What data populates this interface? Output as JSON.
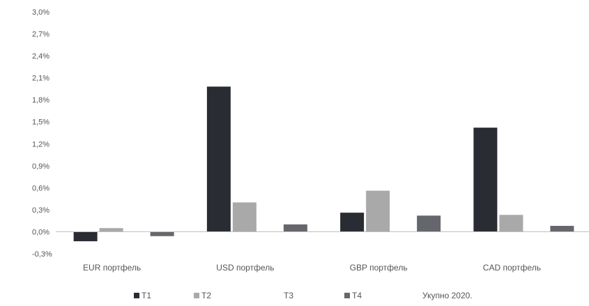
{
  "colors": {
    "T1": "#2a2c33",
    "T2": "#a9a9a9",
    "T3": "#ffffff",
    "T4": "#66676d",
    "axis": "#bfbfbf",
    "text": "#555555"
  },
  "chart_data": {
    "type": "bar",
    "title": "",
    "xlabel": "",
    "ylabel": "",
    "ylim": [
      -0.3,
      3.0
    ],
    "grid": false,
    "legend_position": "bottom",
    "y_ticks": [
      "3,0%",
      "2,7%",
      "2,4%",
      "2,1%",
      "1,8%",
      "1,5%",
      "1,2%",
      "0,9%",
      "0,6%",
      "0,3%",
      "0,0%",
      "-0,3%"
    ],
    "categories": [
      "EUR портфель",
      "USD портфель",
      "GBP портфель",
      "CAD портфель"
    ],
    "series": [
      {
        "name": "T1",
        "values": [
          -0.13,
          1.98,
          0.26,
          1.42
        ]
      },
      {
        "name": "T2",
        "values": [
          0.05,
          0.4,
          0.56,
          0.23
        ]
      },
      {
        "name": "T3",
        "values": [
          0.0,
          0.0,
          0.0,
          0.0
        ]
      },
      {
        "name": "T4",
        "values": [
          -0.06,
          0.1,
          0.22,
          0.08
        ]
      }
    ]
  },
  "legend_note": "Укупно 2020."
}
